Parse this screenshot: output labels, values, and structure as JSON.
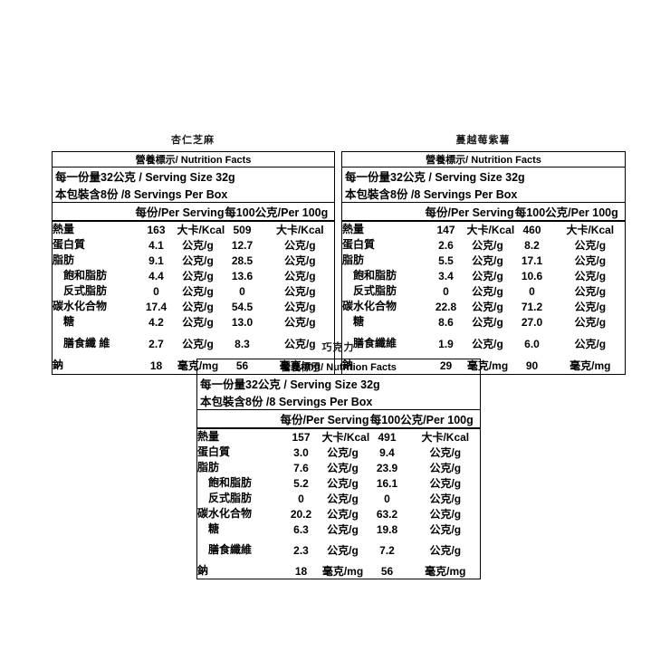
{
  "page": {
    "background": "#ffffff",
    "colors": {
      "text": "#000000",
      "border": "#000000"
    }
  },
  "tables": [
    {
      "title": "杏仁芝麻",
      "header": "營養標示/ Nutrition Facts",
      "serving_size": "每一份量32公克 / Serving Size 32g",
      "servings_per_box": "本包裝含8份 /8 Servings Per Box",
      "col_per_serving": "每份/Per Serving",
      "col_per_100g": "每100公克/Per 100g",
      "rows": [
        {
          "label": "熱量",
          "indent": false,
          "tall": false,
          "v1": "163",
          "u1": "大卡/Kcal",
          "v2": "509",
          "u2": "大卡/Kcal"
        },
        {
          "label": "蛋白質",
          "indent": false,
          "tall": false,
          "v1": "4.1",
          "u1": "公克/g",
          "v2": "12.7",
          "u2": "公克/g"
        },
        {
          "label": "脂肪",
          "indent": false,
          "tall": false,
          "v1": "9.1",
          "u1": "公克/g",
          "v2": "28.5",
          "u2": "公克/g"
        },
        {
          "label": "飽和脂肪",
          "indent": true,
          "tall": false,
          "v1": "4.4",
          "u1": "公克/g",
          "v2": "13.6",
          "u2": "公克/g"
        },
        {
          "label": "反式脂肪",
          "indent": true,
          "tall": false,
          "v1": "0",
          "u1": "公克/g",
          "v2": "0",
          "u2": "公克/g"
        },
        {
          "label": "碳水化合物",
          "indent": false,
          "tall": false,
          "v1": "17.4",
          "u1": "公克/g",
          "v2": "54.5",
          "u2": "公克/g"
        },
        {
          "label": "糖",
          "indent": true,
          "tall": false,
          "v1": "4.2",
          "u1": "公克/g",
          "v2": "13.0",
          "u2": "公克/g"
        },
        {
          "label": "膳食纖\n維",
          "indent": true,
          "tall": true,
          "v1": "2.7",
          "u1": "公克/g",
          "v2": "8.3",
          "u2": "公克/g"
        },
        {
          "label": "鈉",
          "indent": false,
          "tall": false,
          "v1": "18",
          "u1": "毫克/mg",
          "v2": "56",
          "u2": "毫克/mg"
        }
      ]
    },
    {
      "title": "蔓越莓紫薯",
      "header": "營養標示/ Nutrition Facts",
      "serving_size": "每一份量32公克 / Serving Size 32g",
      "servings_per_box": "本包裝含8份 /8 Servings Per Box",
      "col_per_serving": "每份/Per Serving",
      "col_per_100g": "每100公克/Per 100g",
      "rows": [
        {
          "label": "熱量",
          "indent": false,
          "tall": false,
          "v1": "147",
          "u1": "大卡/Kcal",
          "v2": "460",
          "u2": "大卡/Kcal"
        },
        {
          "label": "蛋白質",
          "indent": false,
          "tall": false,
          "v1": "2.6",
          "u1": "公克/g",
          "v2": "8.2",
          "u2": "公克/g"
        },
        {
          "label": "脂肪",
          "indent": false,
          "tall": false,
          "v1": "5.5",
          "u1": "公克/g",
          "v2": "17.1",
          "u2": "公克/g"
        },
        {
          "label": "飽和脂肪",
          "indent": true,
          "tall": false,
          "v1": "3.4",
          "u1": "公克/g",
          "v2": "10.6",
          "u2": "公克/g"
        },
        {
          "label": "反式脂肪",
          "indent": true,
          "tall": false,
          "v1": "0",
          "u1": "公克/g",
          "v2": "0",
          "u2": "公克/g"
        },
        {
          "label": "碳水化合物",
          "indent": false,
          "tall": false,
          "v1": "22.8",
          "u1": "公克/g",
          "v2": "71.2",
          "u2": "公克/g"
        },
        {
          "label": "糖",
          "indent": true,
          "tall": false,
          "v1": "8.6",
          "u1": "公克/g",
          "v2": "27.0",
          "u2": "公克/g"
        },
        {
          "label": "膳食纖維",
          "indent": true,
          "tall": true,
          "v1": "1.9",
          "u1": "公克/g",
          "v2": "6.0",
          "u2": "公克/g"
        },
        {
          "label": "鈉",
          "indent": false,
          "tall": false,
          "v1": "29",
          "u1": "毫克/mg",
          "v2": "90",
          "u2": "毫克/mg"
        }
      ]
    },
    {
      "title": "巧克力",
      "header": "營養標示/ Nutrition Facts",
      "serving_size": "每一份量32公克 / Serving Size 32g",
      "servings_per_box": "本包裝含8份 /8 Servings Per Box",
      "col_per_serving": "每份/Per Serving",
      "col_per_100g": "每100公克/Per 100g",
      "rows": [
        {
          "label": "熱量",
          "indent": false,
          "tall": false,
          "v1": "157",
          "u1": "大卡/Kcal",
          "v2": "491",
          "u2": "大卡/Kcal"
        },
        {
          "label": "蛋白質",
          "indent": false,
          "tall": false,
          "v1": "3.0",
          "u1": "公克/g",
          "v2": "9.4",
          "u2": "公克/g"
        },
        {
          "label": "脂肪",
          "indent": false,
          "tall": false,
          "v1": "7.6",
          "u1": "公克/g",
          "v2": "23.9",
          "u2": "公克/g"
        },
        {
          "label": "飽和脂肪",
          "indent": true,
          "tall": false,
          "v1": "5.2",
          "u1": "公克/g",
          "v2": "16.1",
          "u2": "公克/g"
        },
        {
          "label": "反式脂肪",
          "indent": true,
          "tall": false,
          "v1": "0",
          "u1": "公克/g",
          "v2": "0",
          "u2": "公克/g"
        },
        {
          "label": "碳水化合物",
          "indent": false,
          "tall": false,
          "v1": "20.2",
          "u1": "公克/g",
          "v2": "63.2",
          "u2": "公克/g"
        },
        {
          "label": "糖",
          "indent": true,
          "tall": false,
          "v1": "6.3",
          "u1": "公克/g",
          "v2": "19.8",
          "u2": "公克/g"
        },
        {
          "label": "膳食纖維",
          "indent": true,
          "tall": true,
          "v1": "2.3",
          "u1": "公克/g",
          "v2": "7.2",
          "u2": "公克/g"
        },
        {
          "label": "鈉",
          "indent": false,
          "tall": false,
          "v1": "18",
          "u1": "毫克/mg",
          "v2": "56",
          "u2": "毫克/mg"
        }
      ]
    }
  ]
}
